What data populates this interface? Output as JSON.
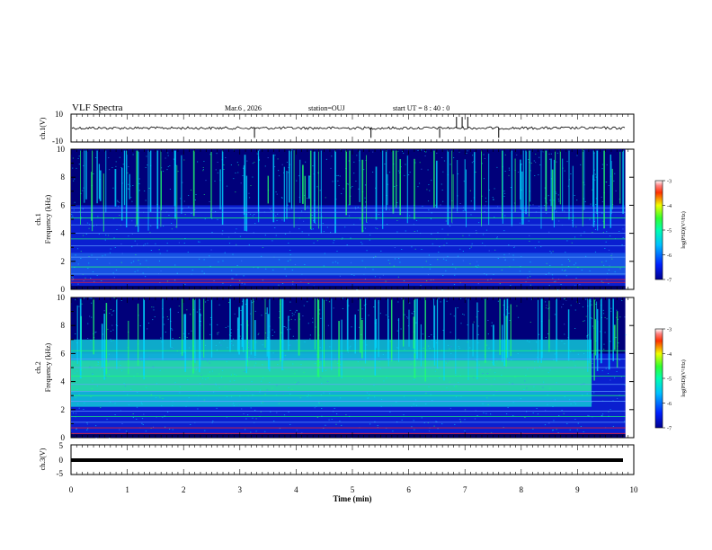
{
  "header": {
    "title": "VLF Spectra",
    "date": "Mar.6 , 2026",
    "station": "station=OUJ",
    "start_ut": "start UT = 8 : 40 : 0"
  },
  "colors": {
    "background_dark": "#00007a",
    "spectrogram_base": "#0a1fd0",
    "cyan": "#00d8ff",
    "green": "#20ff70",
    "red_line": "#ff2020"
  },
  "chart_data": [
    {
      "type": "line",
      "panel": "ch1_waveform",
      "ylabel": "ch.1(V)",
      "ylim": [
        -10,
        10
      ],
      "yticks": [
        "10",
        "-10"
      ],
      "x": [
        0,
        10
      ],
      "baseline": 0,
      "spikes_min": [
        3.26,
        5.33,
        6.55,
        6.85,
        6.95,
        7.05,
        7.6
      ],
      "grid": false
    },
    {
      "type": "heatmap",
      "panel": "ch1_spectrogram",
      "ylabel": "ch.1 Frequency (kHz)",
      "ylim": [
        0,
        10
      ],
      "yticks": [
        "0",
        "2",
        "4",
        "6",
        "8",
        "10"
      ],
      "xlim": [
        0,
        10
      ],
      "data_end_min": 9.85,
      "colorbar": {
        "label": "log(PSD)(V²/Hz)",
        "ticks": [
          "-3",
          "-4",
          "-5",
          "-6",
          "-7"
        ],
        "range": [
          -7,
          -3
        ]
      }
    },
    {
      "type": "heatmap",
      "panel": "ch2_spectrogram",
      "ylabel": "ch.2 Frequency (kHz)",
      "ylim": [
        0,
        10
      ],
      "yticks": [
        "0",
        "2",
        "4",
        "6",
        "8",
        "10"
      ],
      "xlim": [
        0,
        10
      ],
      "data_end_min": 9.85,
      "colorbar": {
        "label": "log(PSD)(V²/Hz)",
        "ticks": [
          "-3",
          "-4",
          "-5",
          "-6",
          "-7"
        ],
        "range": [
          -7,
          -3
        ]
      }
    },
    {
      "type": "line",
      "panel": "ch3_waveform",
      "ylabel": "ch.3(V)",
      "ylim": [
        -5,
        5
      ],
      "yticks": [
        "5",
        "0",
        "-5"
      ],
      "x": [
        0,
        9.85
      ],
      "y": [
        -1,
        -1
      ]
    }
  ],
  "xaxis": {
    "label": "Time (min)",
    "ticks": [
      "0",
      "1",
      "2",
      "3",
      "4",
      "5",
      "6",
      "7",
      "8",
      "9",
      "10"
    ],
    "range": [
      0,
      10
    ]
  }
}
